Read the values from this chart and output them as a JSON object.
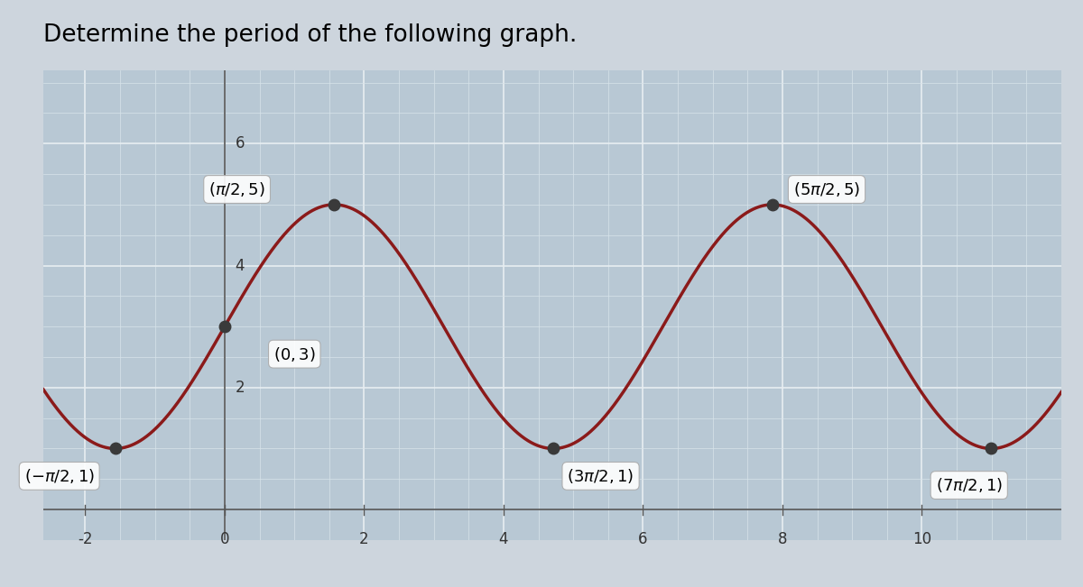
{
  "title": "Determine the period of the following graph.",
  "curve_color": "#8B1A1A",
  "curve_linewidth": 2.5,
  "background_color": "#cdd5dd",
  "plot_bg_color": "#b8c8d4",
  "grid_major_color": "#e8eef2",
  "grid_minor_color": "#d8e4ea",
  "dot_color": "#3a3a3a",
  "dot_size": 9,
  "xlim": [
    -2.6,
    12.0
  ],
  "ylim": [
    -0.5,
    7.2
  ],
  "xticks": [
    -2,
    0,
    2,
    4,
    6,
    8,
    10
  ],
  "yticks": [
    2,
    4,
    6
  ],
  "ytick_6_label": "6",
  "tick_fontsize": 12,
  "annotation_fontsize": 13,
  "title_fontsize": 19,
  "amplitude": 2,
  "vertical_shift": 3,
  "pi": 3.14159265358979
}
